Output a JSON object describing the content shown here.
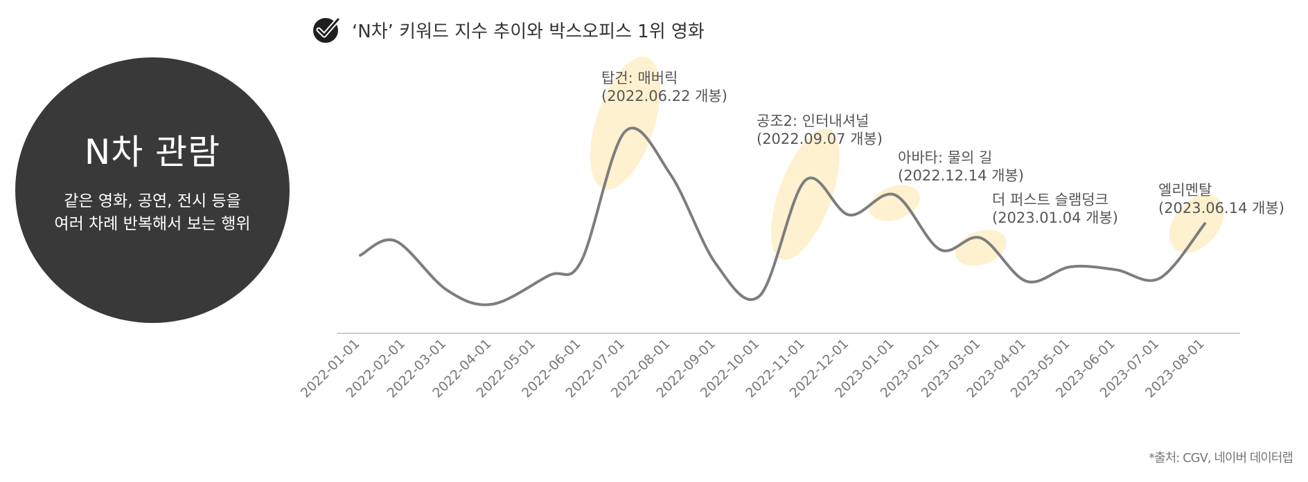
{
  "header": {
    "icon": "check-circle-icon",
    "title": "‘N차’ 키워드 지수 추이와 박스오피스 1위 영화"
  },
  "callout": {
    "title": "N차 관람",
    "description": "같은 영화, 공연, 전시 등을\n여러 차례 반복해서 보는 행위"
  },
  "source": "*출처: CGV, 네이버 데이터랩",
  "colors": {
    "line": "#7d7d7d",
    "highlight": "#fdf1cf",
    "circle": "#3a3939",
    "axis": "#cccccc"
  },
  "chart_data": {
    "type": "line",
    "title": "‘N차’ 키워드 지수 추이와 박스오피스 1위 영화",
    "x": [
      "2022-01-01",
      "2022-02-01",
      "2022-03-01",
      "2022-04-01",
      "2022-05-01",
      "2022-06-01",
      "2022-07-01",
      "2022-08-01",
      "2022-09-01",
      "2022-10-01",
      "2022-11-01",
      "2022-12-01",
      "2023-01-01",
      "2023-02-01",
      "2023-03-01",
      "2023-04-01",
      "2023-05-01",
      "2023-06-01",
      "2023-07-01",
      "2023-08-01"
    ],
    "y_axis_visible": false,
    "grid": false,
    "series": [
      {
        "points": [
          [
            "2022-01-01",
            23
          ],
          [
            "2022-01-25",
            28
          ],
          [
            "2022-03-01",
            11
          ],
          [
            "2022-04-01",
            6
          ],
          [
            "2022-05-10",
            16
          ],
          [
            "2022-06-01",
            21
          ],
          [
            "2022-07-01",
            66
          ],
          [
            "2022-08-01",
            51
          ],
          [
            "2022-09-01",
            20
          ],
          [
            "2022-10-01",
            9
          ],
          [
            "2022-11-01",
            49
          ],
          [
            "2022-12-01",
            37
          ],
          [
            "2023-01-01",
            44
          ],
          [
            "2023-02-01",
            25
          ],
          [
            "2023-03-01",
            29
          ],
          [
            "2023-04-01",
            14
          ],
          [
            "2023-05-01",
            19
          ],
          [
            "2023-06-01",
            18
          ],
          [
            "2023-07-01",
            15
          ],
          [
            "2023-08-01",
            34
          ]
        ]
      }
    ],
    "annotations": [
      {
        "title": "탑건: 매버릭",
        "subtitle": "(2022.06.22 개봉)",
        "date": "2022-07-01"
      },
      {
        "title": "공조2: 인터내셔널",
        "subtitle": "(2022.09.07 개봉)",
        "date": "2022-11-01"
      },
      {
        "title": "아바타: 물의 길",
        "subtitle": "(2022.12.14 개봉)",
        "date": "2023-01-01"
      },
      {
        "title": "더 퍼스트 슬램덩크",
        "subtitle": "(2023.01.04 개봉)",
        "date": "2023-03-01"
      },
      {
        "title": "엘리멘탈",
        "subtitle": "(2023.06.14 개봉)",
        "date": "2023-08-01"
      }
    ]
  }
}
